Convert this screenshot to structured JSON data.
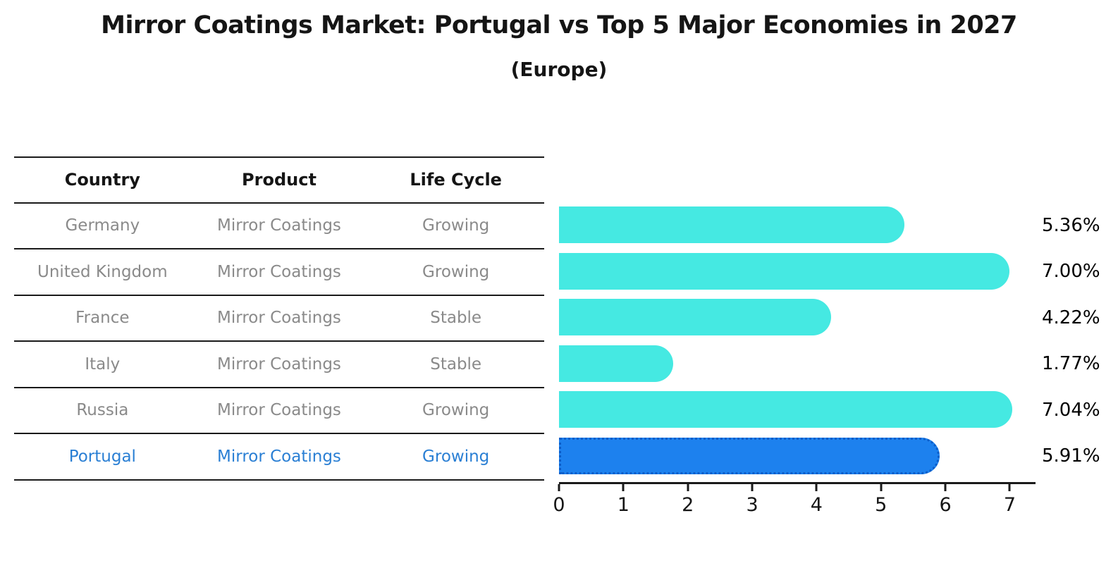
{
  "title": "Mirror Coatings Market: Portugal vs Top 5 Major Economies in 2027",
  "subtitle": "(Europe)",
  "table": {
    "headers": [
      "Country",
      "Product",
      "Life Cycle"
    ],
    "rows": [
      {
        "country": "Germany",
        "product": "Mirror Coatings",
        "life_cycle": "Growing",
        "highlight": false
      },
      {
        "country": "United Kingdom",
        "product": "Mirror Coatings",
        "life_cycle": "Growing",
        "highlight": false
      },
      {
        "country": "France",
        "product": "Mirror Coatings",
        "life_cycle": "Stable",
        "highlight": false
      },
      {
        "country": "Italy",
        "product": "Mirror Coatings",
        "life_cycle": "Stable",
        "highlight": false
      },
      {
        "country": "Russia",
        "product": "Mirror Coatings",
        "life_cycle": "Growing",
        "highlight": false
      },
      {
        "country": "Portugal",
        "product": "Mirror Coatings",
        "life_cycle": "Growing",
        "highlight": true
      }
    ]
  },
  "chart_data": {
    "type": "bar",
    "orientation": "horizontal",
    "title": "Mirror Coatings Market: Portugal vs Top 5 Major Economies in 2027 (Europe)",
    "categories": [
      "Germany",
      "United Kingdom",
      "France",
      "Italy",
      "Russia",
      "Portugal"
    ],
    "values": [
      5.36,
      7.0,
      4.22,
      1.77,
      7.04,
      5.91
    ],
    "value_labels": [
      "5.36%",
      "7.00%",
      "4.22%",
      "1.77%",
      "7.04%",
      "5.91%"
    ],
    "unit": "%",
    "xlim": [
      0,
      7.4
    ],
    "x_ticks": [
      0,
      1,
      2,
      3,
      4,
      5,
      6,
      7
    ],
    "grid": false,
    "legend": false,
    "highlight_index": 5,
    "bar_color": "#45e9e2",
    "highlight_color": "#1d81ee",
    "highlight_border_color": "#0c5dc8",
    "highlight_text_color": "#2a7fd4"
  }
}
